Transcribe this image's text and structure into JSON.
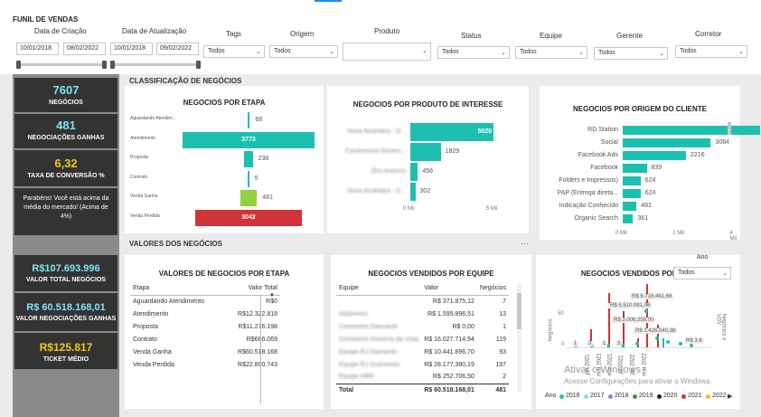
{
  "header": {
    "title": "FUNIL DE VENDAS"
  },
  "filters": {
    "criacao": {
      "label": "Data de Criação",
      "from": "10/01/2018",
      "to": "08/02/2022"
    },
    "atualizacao": {
      "label": "Data de Atualização",
      "from": "10/01/2018",
      "to": "09/02/2022"
    },
    "tags": {
      "label": "Tags",
      "value": "Todos"
    },
    "origem": {
      "label": "Origem",
      "value": "Todos"
    },
    "produto": {
      "label": "Produto",
      "value": ""
    },
    "status": {
      "label": "Status",
      "value": "Todos"
    },
    "equipe": {
      "label": "Equipe",
      "value": "Todos"
    },
    "gerente": {
      "label": "Gerente",
      "value": "Todos"
    },
    "corretor": {
      "label": "Corretor",
      "value": "Todos"
    }
  },
  "kpis": {
    "negocios": {
      "value": "7607",
      "label": "NEGÓCIOS"
    },
    "ganhas": {
      "value": "481",
      "label": "NEGOCIAÇÕES GANHAS"
    },
    "taxa": {
      "value": "6,32",
      "label": "TAXA DE CONVERSÃO %"
    },
    "message": "Parabéns! Você está acima da média do mercado! (Acima de 4%)",
    "valor_total": {
      "value": "R$107.693.996",
      "label": "VALOR TOTAL NEGÓCIOS"
    },
    "valor_ganhas": {
      "value": "R$ 60.518.168,01",
      "label": "VALOR NEGOCIAÇÕES GANHAS"
    },
    "ticket": {
      "value": "R$125.817",
      "label": "TICKET MÉDIO"
    }
  },
  "colors": {
    "teal": "#1dbfb0",
    "red": "#d13438",
    "green": "#8fd33d",
    "dark": "#333333",
    "kpi_cyan": "#7fe3f5",
    "kpi_yellow": "#f2c811"
  },
  "sections": {
    "classificacao": "CLASSIFICAÇÃO DE NEGÓCIOS",
    "valores": "VALORES DOS NEGÓCIOS"
  },
  "chart_data": [
    {
      "type": "bar",
      "title": "NEGOCIOS POR ETAPA",
      "categories": [
        "Aguardando Atendim...",
        "Atendimento",
        "Proposta",
        "Contrato",
        "Venda Ganha",
        "Venda Perdida"
      ],
      "values": [
        68,
        3773,
        238,
        5,
        481,
        3042
      ],
      "value_labels": [
        "68",
        "3773",
        "238",
        "5",
        "481",
        "3042"
      ],
      "colors": [
        "#1dbfb0",
        "#1dbfb0",
        "#1dbfb0",
        "#1dbfb0",
        "#8fd33d",
        "#d13438"
      ]
    },
    {
      "type": "bar",
      "title": "NEGOCIOS POR PRODUTO DE INTERESSE",
      "categories": [
        "Nova Alcântara - D...",
        "Condomínio Reserv...",
        "(Em branco)",
        "Nova Alcântara - D..."
      ],
      "values": [
        5020,
        1829,
        456,
        302
      ],
      "value_labels": [
        "5020",
        "1829",
        "456",
        "302"
      ],
      "xticks": [
        "0 Mil",
        "5 Mil"
      ],
      "xlim": [
        0,
        5500
      ]
    },
    {
      "type": "bar",
      "title": "NEGOCIOS POR ORIGEM DO CLIENTE",
      "categories": [
        "RD Station",
        "Social",
        "Facebook Ads",
        "Facebook",
        "Folders e Impressos)",
        "PAP (Entrega direta...",
        "Indicação Conhecido",
        "Organic Search"
      ],
      "values": [
        4799,
        3084,
        2216,
        839,
        624,
        624,
        481,
        361
      ],
      "value_labels": [
        "4799",
        "3084",
        "2216",
        "839",
        "624",
        "624",
        "481",
        "361"
      ],
      "xticks": [
        "0 Mil",
        "2 Mil",
        "4 Mil"
      ],
      "xlim": [
        0,
        5000
      ]
    },
    {
      "type": "table",
      "title": "VALORES DE NEGOCIOS POR ETAPA",
      "columns": [
        "Etapa",
        "Valor Total"
      ],
      "rows": [
        [
          "Aguardando Atendimento",
          "R$0"
        ],
        [
          "Atendimento",
          "R$12.322.818"
        ],
        [
          "Proposta",
          "R$11.276.198"
        ],
        [
          "Contrato",
          "R$686.069"
        ],
        [
          "Venda Ganha",
          "R$60.518.168"
        ],
        [
          "Venda Perdida",
          "R$22.890.743"
        ]
      ]
    },
    {
      "type": "table",
      "title": "NEGOCIOS VENDIDOS POR EQUIPE",
      "columns": [
        "Equipe",
        "Valor",
        "Negócios"
      ],
      "rows": [
        [
          "",
          "R$ 371.875,12",
          "7"
        ],
        [
          "Autônomo",
          "R$ 1.595.896,51",
          "13"
        ],
        [
          "Corretores Diamante",
          "R$ 0,00",
          "1"
        ],
        [
          "Corretores Reserva da Vista",
          "R$ 16.027.714,94",
          "119"
        ],
        [
          "Equipe RJ Diamante",
          "R$ 10.441.896,70",
          "93"
        ],
        [
          "Equipe RJ Guerreiros",
          "R$ 28.177.380,19",
          "197"
        ],
        [
          "Equipe HBR",
          "R$ 252.706,50",
          "2"
        ]
      ],
      "total": [
        "Total",
        "R$ 60.518.168,01",
        "481"
      ]
    },
    {
      "type": "line",
      "title": "NEGOCIOS VENDIDOS POR MÊS",
      "ylabel": "Negócios",
      "y2label": "Negócios e VGV",
      "yticks": [
        "0",
        "50"
      ],
      "count_labels": [
        "1",
        "3",
        "1",
        "3"
      ],
      "value_labels": [
        "R$ 6.716.461,68",
        "R$ 5.510.081,06",
        "R$ 3.006.258,00",
        "R$ 1.426.040,38",
        "R$ 3.6"
      ],
      "month_labels": [
        "jan 2021",
        "mar 2021",
        "mai 2021",
        "jul 2021",
        "jan 2022",
        "mar 2022"
      ],
      "legend_title": "Ano",
      "legend": [
        {
          "name": "2016",
          "color": "#1dbfb0"
        },
        {
          "name": "2017",
          "color": "#7fe3f5"
        },
        {
          "name": "2018",
          "color": "#a67fb8"
        },
        {
          "name": "2019",
          "color": "#2aa02a"
        },
        {
          "name": "2020",
          "color": "#252423"
        },
        {
          "name": "2021",
          "color": "#d13438"
        },
        {
          "name": "2022",
          "color": "#f2c811"
        }
      ],
      "year_filter": {
        "label": "Ano",
        "value": "Todos"
      }
    }
  ],
  "watermark": {
    "line1": "Ativar o Windows",
    "line2": "Acesse Configurações para ativar o Windows."
  }
}
